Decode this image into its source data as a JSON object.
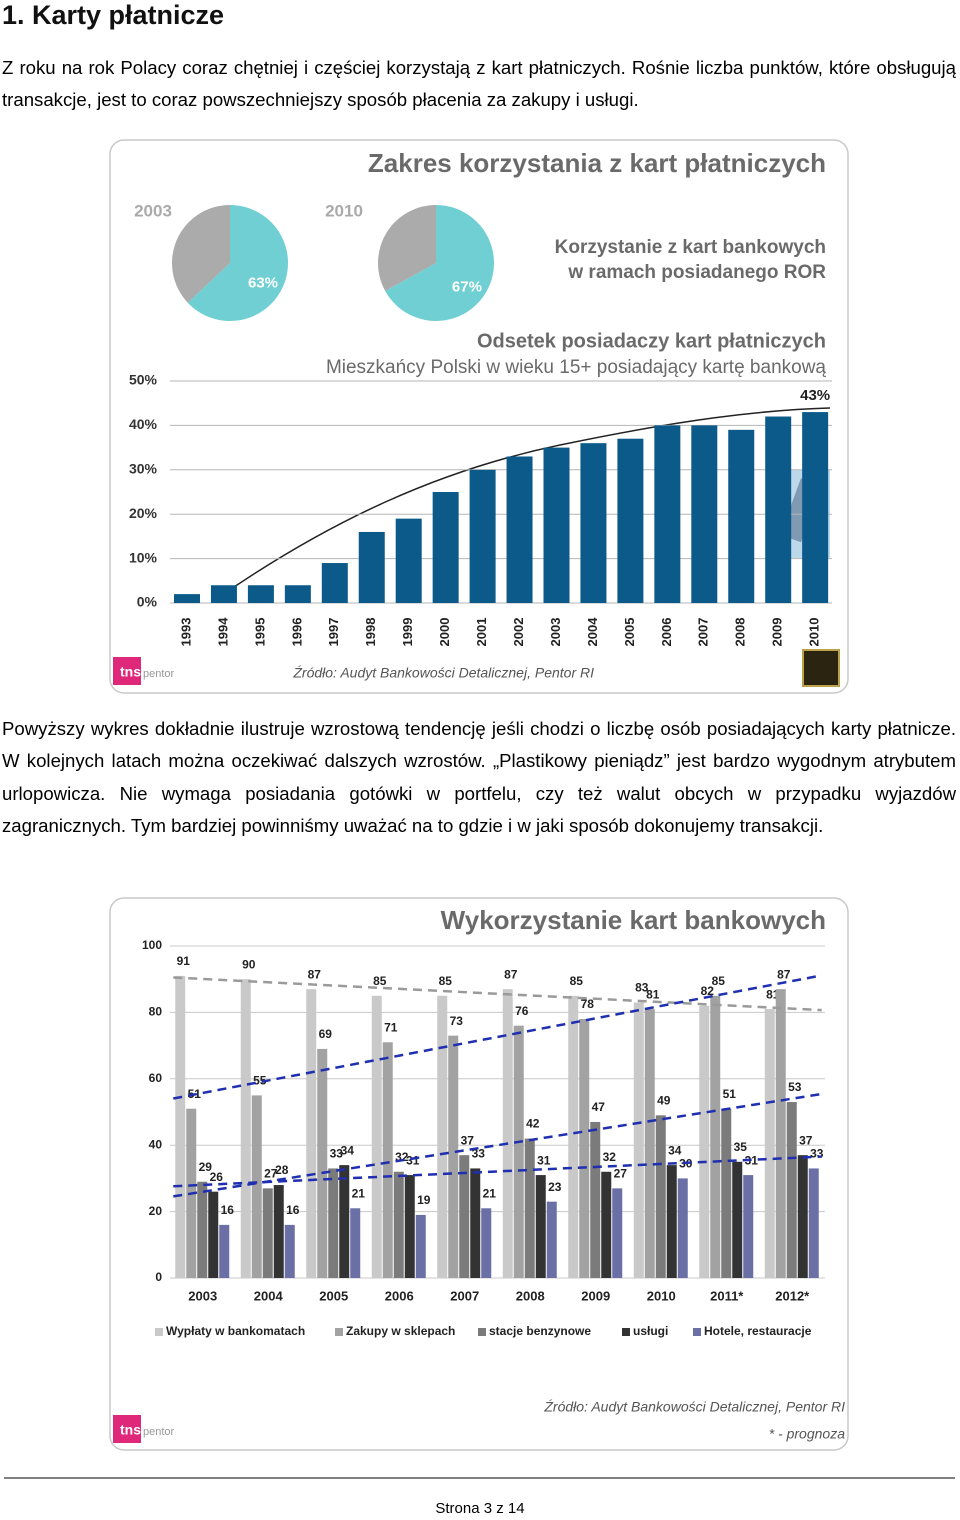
{
  "heading": "1. Karty płatnicze",
  "paragraphs": [
    "Z roku na rok Polacy coraz chętniej i częściej korzystają z kart płatniczych. Rośnie liczba punktów, które obsługują transakcje, jest to coraz powszechniejszy sposób płacenia za zakupy i usługi.",
    "Powyższy wykres dokładnie ilustruje wzrostową tendencję jeśli chodzi o liczbę osób posiadających karty płatnicze. W kolejnych latach można oczekiwać dalszych wzrostów. „Plastikowy pieniądz” jest bardzo wygodnym atrybutem urlopowicza. Nie wymaga posiadania gotówki w portfelu, czy też walut obcych w przypadku wyjazdów zagranicznych. Tym bardziej powinniśmy uważać na to gdzie i w jaki sposób dokonujemy transakcji."
  ],
  "figure_1": {
    "title": "Zakres korzystania z kart płatniczych",
    "pie_caption": [
      "Korzystanie z kart bankowych",
      "w ramach posiadanego ROR"
    ],
    "source": "Źródło: Audyt Bankowości Detalicznej, Pentor RI",
    "logo": [
      "tns",
      "pentor"
    ]
  },
  "figure_2": {
    "source": "Źródło: Audyt Bankowości Detalicznej, Pentor RI",
    "note": "* - prognoza",
    "logo": [
      "tns",
      "pentor"
    ]
  },
  "chart_data": [
    {
      "type": "pie",
      "title": "2003",
      "values": [
        63,
        37
      ],
      "value_labels": [
        "63%",
        null
      ],
      "colors": [
        "#6fcfd3",
        "#ababab"
      ]
    },
    {
      "type": "pie",
      "title": "2010",
      "values": [
        67,
        33
      ],
      "value_labels": [
        "67%",
        null
      ],
      "colors": [
        "#6fcfd3",
        "#ababab"
      ]
    },
    {
      "type": "bar",
      "title": "Odsetek posiadaczy kart płatniczych",
      "subtitle": "Mieszkańcy Polski w wieku 15+ posiadający kartę bankową",
      "categories": [
        "1993",
        "1994",
        "1995",
        "1996",
        "1997",
        "1998",
        "1999",
        "2000",
        "2001",
        "2002",
        "2003",
        "2004",
        "2005",
        "2006",
        "2007",
        "2008",
        "2009",
        "2010"
      ],
      "values": [
        2,
        4,
        4,
        4,
        9,
        16,
        19,
        25,
        30,
        33,
        35,
        36,
        37,
        40,
        40,
        39,
        42,
        43
      ],
      "value_labels": [
        null,
        null,
        null,
        null,
        null,
        null,
        null,
        null,
        null,
        null,
        null,
        null,
        null,
        null,
        null,
        null,
        null,
        "43%"
      ],
      "color": "#0b5a8a",
      "ylim": [
        0,
        50
      ],
      "yticks": [
        {
          "value": 0,
          "label": "0%"
        },
        {
          "value": 10,
          "label": "10%"
        },
        {
          "value": 20,
          "label": "20%"
        },
        {
          "value": 30,
          "label": "30%"
        },
        {
          "value": 40,
          "label": "40%"
        },
        {
          "value": 50,
          "label": "50%"
        }
      ],
      "grid": true
    },
    {
      "type": "grouped_bar",
      "title": "Wykorzystanie kart bankowych",
      "categories": [
        "2003",
        "2004",
        "2005",
        "2006",
        "2007",
        "2008",
        "2009",
        "2010",
        "2011*",
        "2012*"
      ],
      "series": [
        {
          "name": "Wypłaty w bankomatach",
          "color": "#c9c9c9",
          "values": [
            91,
            90,
            87,
            85,
            85,
            87,
            85,
            83,
            82,
            81
          ]
        },
        {
          "name": "Zakupy w sklepach",
          "color": "#a2a2a2",
          "values": [
            51,
            55,
            69,
            71,
            73,
            76,
            78,
            81,
            85,
            87
          ]
        },
        {
          "name": "stacje benzynowe",
          "color": "#7b7b7b",
          "values": [
            29,
            27,
            33,
            32,
            37,
            42,
            47,
            49,
            51,
            53
          ]
        },
        {
          "name": "usługi",
          "color": "#333333",
          "values": [
            26,
            28,
            34,
            31,
            33,
            31,
            32,
            34,
            35,
            37
          ]
        },
        {
          "name": "Hotele, restauracje",
          "color": "#6a6fa5",
          "values": [
            16,
            16,
            21,
            19,
            21,
            23,
            27,
            30,
            31,
            33
          ]
        }
      ],
      "ylim": [
        0,
        100
      ],
      "yticks": [
        0,
        20,
        40,
        60,
        80,
        100
      ],
      "grid": true,
      "legend": "bottom"
    }
  ],
  "footer": "Strona 3 z 14"
}
